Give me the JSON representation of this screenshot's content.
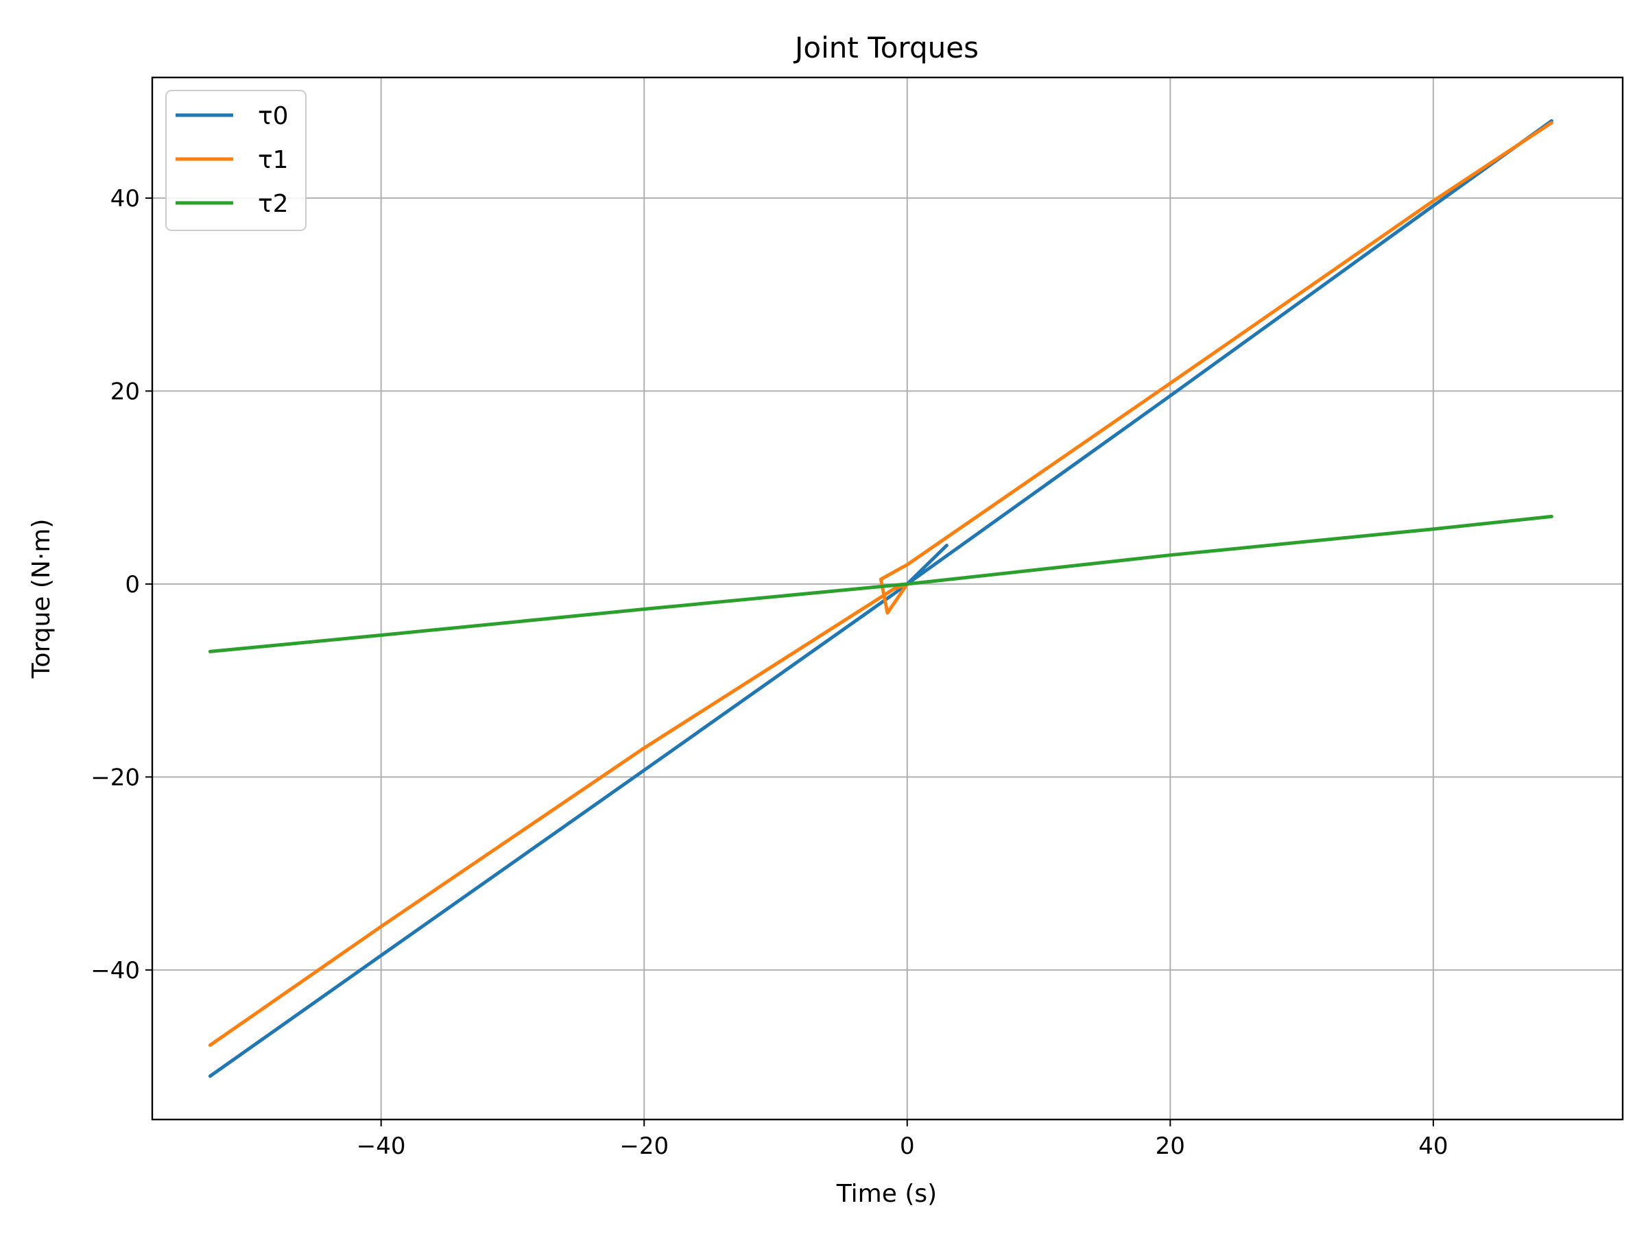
{
  "chart_data": {
    "type": "line",
    "title": "Joint Torques",
    "xlabel": "Time (s)",
    "ylabel": "Torque (N·m)",
    "xlim": [
      -57.4,
      54.4
    ],
    "ylim": [
      -55.5,
      52.5
    ],
    "xticks": [
      -40,
      -20,
      0,
      20,
      40
    ],
    "yticks": [
      -40,
      -20,
      0,
      20,
      40
    ],
    "xtick_labels": [
      "−40",
      "−20",
      "0",
      "20",
      "40"
    ],
    "ytick_labels": [
      "−40",
      "−20",
      "0",
      "20",
      "40"
    ],
    "grid": true,
    "legend_position": "top-left",
    "series": [
      {
        "name": "τ0",
        "color": "#1f77b4",
        "x": [
          -53,
          -40,
          -20,
          -1,
          0,
          3,
          0,
          20,
          40,
          49
        ],
        "y": [
          -51,
          -38.5,
          -19.3,
          -1,
          0,
          4,
          0,
          19.5,
          39.2,
          48
        ]
      },
      {
        "name": "τ1",
        "color": "#ff7f0e",
        "x": [
          -53,
          -40,
          -20,
          -1,
          0,
          -1.5,
          -2,
          0,
          20,
          40,
          49
        ],
        "y": [
          -47.8,
          -35.5,
          -17,
          -0.5,
          0,
          -3,
          0.5,
          2,
          20.8,
          39.7,
          47.8
        ]
      },
      {
        "name": "τ2",
        "color": "#2ca02c",
        "x": [
          -53,
          -40,
          -20,
          0,
          20,
          40,
          49
        ],
        "y": [
          -7,
          -5.3,
          -2.6,
          0,
          3,
          5.7,
          7
        ]
      }
    ]
  }
}
